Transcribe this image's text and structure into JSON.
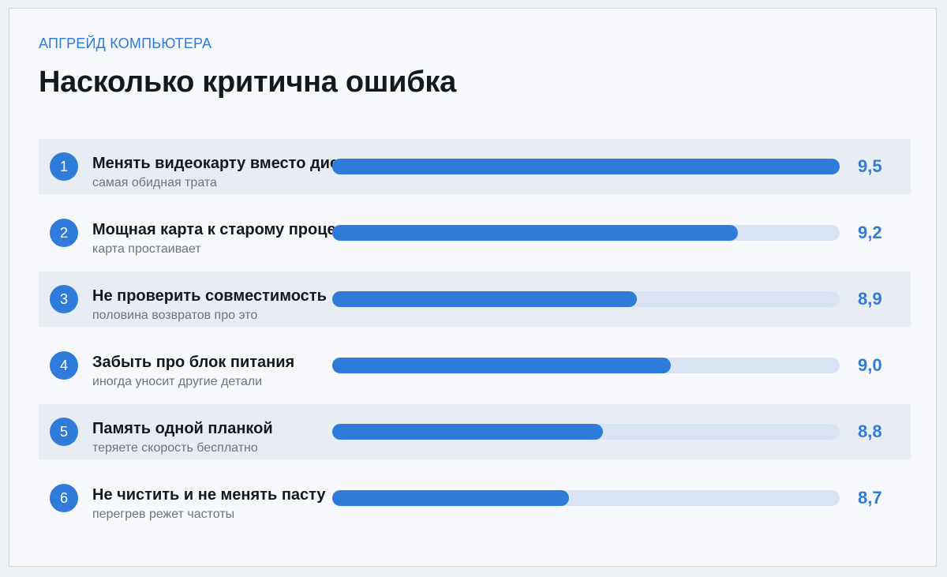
{
  "header": {
    "kicker": "АПГРЕЙД КОМПЬЮТЕРА",
    "title": "Насколько критична ошибка"
  },
  "colors": {
    "accent": "#2f7bd9",
    "track": "#d9e3f3",
    "title": "#15191f",
    "subtitle_text": "#6b7481",
    "row_shade": "#e8ecf3"
  },
  "chart_data": {
    "type": "bar",
    "orientation": "horizontal",
    "items": [
      {
        "rank": "1",
        "label": "Менять видеокарту вместо диска",
        "note": "самая обидная трата",
        "value": 9.5,
        "value_label": "9,5",
        "bar_fraction": 1.0
      },
      {
        "rank": "2",
        "label": "Мощная карта к старому процессору",
        "note": "карта простаивает",
        "value": 9.2,
        "value_label": "9,2",
        "bar_fraction": 0.8
      },
      {
        "rank": "3",
        "label": "Не проверить совместимость",
        "note": "половина возвратов про это",
        "value": 8.9,
        "value_label": "8,9",
        "bar_fraction": 0.6
      },
      {
        "rank": "4",
        "label": "Забыть про блок питания",
        "note": "иногда уносит другие детали",
        "value": 9.0,
        "value_label": "9,0",
        "bar_fraction": 0.667
      },
      {
        "rank": "5",
        "label": "Память одной планкой",
        "note": "теряете скорость бесплатно",
        "value": 8.8,
        "value_label": "8,8",
        "bar_fraction": 0.533
      },
      {
        "rank": "6",
        "label": "Не чистить и не менять пасту",
        "note": "перегрев режет частоты",
        "value": 8.7,
        "value_label": "8,7",
        "bar_fraction": 0.467
      }
    ]
  }
}
